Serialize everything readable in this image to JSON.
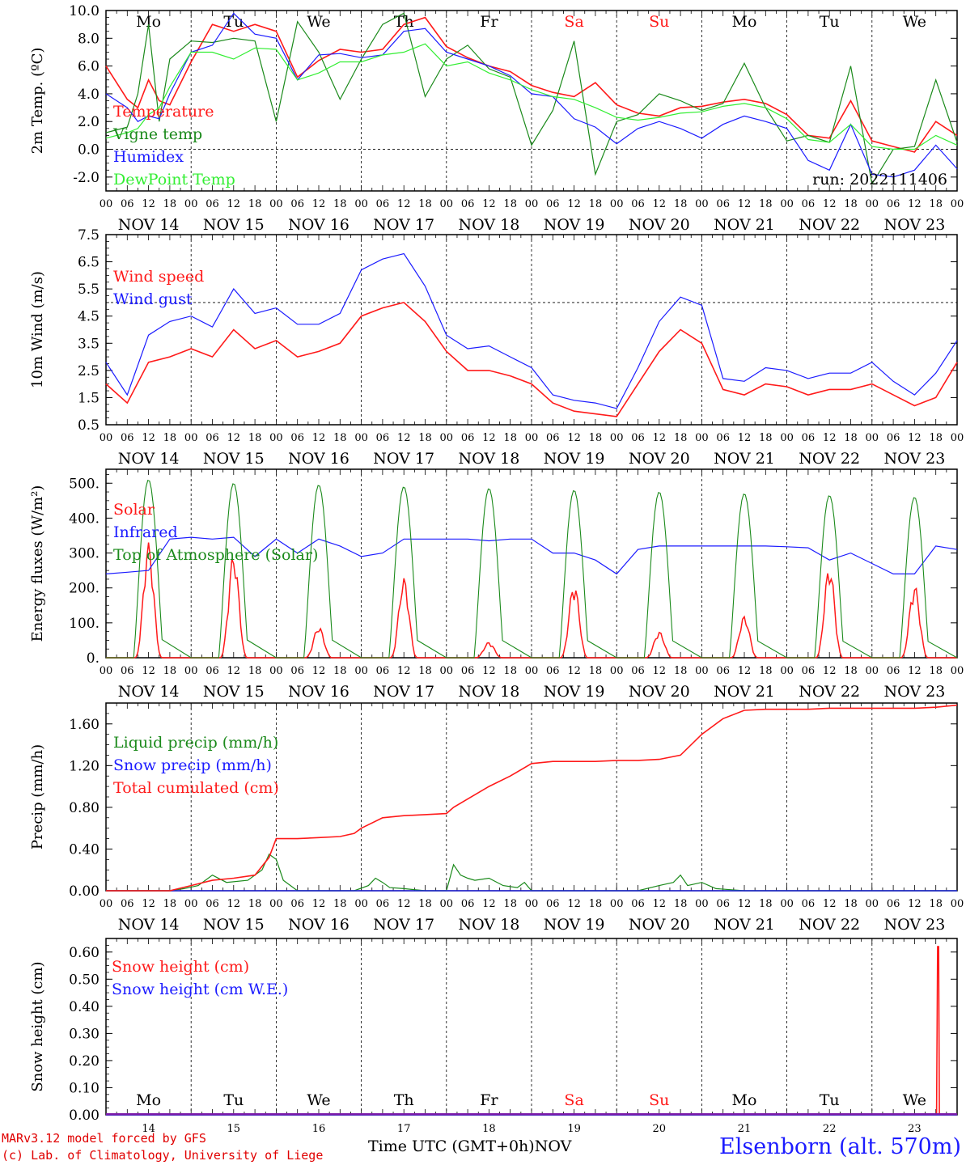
{
  "footer": {
    "model_line": "MARv3.12 model forced by GFS",
    "copyright_line": "(c) Lab. of Climatology, University of Liege",
    "station": "Elsenborn (alt. 570m)",
    "time_axis_label": "Time UTC (GMT+0h)",
    "month_label": "NOV"
  },
  "colors": {
    "red": "#ff1a1a",
    "green": "#1b8a1b",
    "blue": "#1c1cff",
    "lightgreen": "#33ee33",
    "weekend": "#ff1a1a"
  },
  "time_axis": {
    "days": [
      "NOV 14",
      "NOV 15",
      "NOV 16",
      "NOV 17",
      "NOV 18",
      "NOV 19",
      "NOV 20",
      "NOV 21",
      "NOV 22",
      "NOV 23"
    ],
    "day_numbers": [
      "14",
      "15",
      "16",
      "17",
      "18",
      "19",
      "20",
      "21",
      "22",
      "23"
    ],
    "weekdays": [
      "Mo",
      "Tu",
      "We",
      "Th",
      "Fr",
      "Sa",
      "Su",
      "Mo",
      "Tu",
      "We"
    ],
    "weekend_flags": [
      false,
      false,
      false,
      false,
      false,
      true,
      true,
      false,
      false,
      false
    ],
    "hour_ticks": [
      "00",
      "06",
      "12",
      "18"
    ],
    "end_tick": "00"
  },
  "chart_data": [
    {
      "id": "temp",
      "type": "line",
      "ylabel": "2m Temp. (ºC)",
      "ylim": [
        -3,
        10
      ],
      "yticks": [
        "-2.0",
        "0.0",
        "2.0",
        "4.0",
        "6.0",
        "8.0",
        "10.0"
      ],
      "ytick_values": [
        -2,
        0,
        2,
        4,
        6,
        8,
        10
      ],
      "ref_line": 0,
      "annotation": "run: 2022111406",
      "x_hours": [
        0,
        6,
        9,
        12,
        15,
        18,
        24,
        30,
        36,
        42,
        48,
        54,
        60,
        66,
        72,
        78,
        84,
        90,
        96,
        102,
        108,
        114,
        120,
        126,
        132,
        138,
        144,
        150,
        156,
        162,
        168,
        174,
        180,
        186,
        192,
        198,
        204,
        210,
        216,
        222,
        228,
        234,
        240
      ],
      "series": [
        {
          "name": "Temperature",
          "color": "red",
          "values": [
            6.0,
            3.6,
            3.0,
            5.0,
            3.5,
            3.2,
            6.3,
            9.0,
            8.5,
            9.0,
            8.5,
            5.2,
            6.4,
            7.2,
            7.0,
            7.2,
            9.0,
            9.5,
            7.4,
            6.6,
            6.0,
            5.6,
            4.6,
            4.1,
            3.8,
            4.8,
            3.2,
            2.6,
            2.4,
            3.0,
            3.1,
            3.4,
            3.6,
            3.3,
            2.5,
            1.0,
            0.8,
            3.5,
            0.6,
            0.2,
            -0.2,
            2.0,
            1.0
          ]
        },
        {
          "name": "Vigne temp",
          "color": "green",
          "values": [
            1.2,
            1.6,
            4.0,
            9.0,
            2.0,
            6.5,
            7.8,
            7.7,
            8.0,
            7.8,
            2.0,
            9.2,
            7.0,
            3.6,
            6.5,
            9.0,
            9.8,
            3.8,
            6.5,
            7.5,
            5.8,
            5.2,
            0.3,
            2.8,
            7.8,
            -1.8,
            2.0,
            2.5,
            4.0,
            3.5,
            2.8,
            3.3,
            6.2,
            3.0,
            0.6,
            1.0,
            0.5,
            6.0,
            -2.5,
            0.0,
            0.2,
            5.0,
            0.5
          ]
        },
        {
          "name": "Humidex",
          "color": "blue",
          "values": [
            4.0,
            3.0,
            2.0,
            2.4,
            2.2,
            4.0,
            7.0,
            7.5,
            9.8,
            8.3,
            8.0,
            5.0,
            6.8,
            6.9,
            6.6,
            6.8,
            8.5,
            8.7,
            7.0,
            6.5,
            6.0,
            5.3,
            4.0,
            3.8,
            2.2,
            1.6,
            0.4,
            1.5,
            2.0,
            1.5,
            0.8,
            1.8,
            2.4,
            2.0,
            1.5,
            -0.8,
            -1.5,
            1.8,
            -1.8,
            -2.0,
            -1.5,
            0.3,
            -1.4
          ]
        },
        {
          "name": "DewPoint Temp",
          "color": "lightgreen",
          "values": [
            0.8,
            1.2,
            1.5,
            2.5,
            3.0,
            4.5,
            7.0,
            7.0,
            6.5,
            7.3,
            7.2,
            5.0,
            5.5,
            6.3,
            6.3,
            6.8,
            7.0,
            7.6,
            6.0,
            6.3,
            5.5,
            5.0,
            4.3,
            3.8,
            3.6,
            3.0,
            2.3,
            2.1,
            2.3,
            2.6,
            2.7,
            3.1,
            3.3,
            3.0,
            2.2,
            0.7,
            0.5,
            1.8,
            0.2,
            0.0,
            0.0,
            1.0,
            0.3
          ]
        }
      ]
    },
    {
      "id": "wind",
      "type": "line",
      "ylabel": "10m Wind (m/s)",
      "ylim": [
        0.5,
        7.5
      ],
      "yticks": [
        "0.5",
        "1.5",
        "2.5",
        "3.5",
        "4.5",
        "5.5",
        "6.5",
        "7.5"
      ],
      "ytick_values": [
        0.5,
        1.5,
        2.5,
        3.5,
        4.5,
        5.5,
        6.5,
        7.5
      ],
      "ref_line": 5.0,
      "x_hours": [
        0,
        6,
        12,
        18,
        24,
        30,
        36,
        42,
        48,
        54,
        60,
        66,
        72,
        78,
        84,
        90,
        96,
        102,
        108,
        114,
        120,
        126,
        132,
        138,
        144,
        150,
        156,
        162,
        168,
        174,
        180,
        186,
        192,
        198,
        204,
        210,
        216,
        222,
        228,
        234,
        240
      ],
      "series": [
        {
          "name": "Wind speed",
          "color": "red",
          "values": [
            2.0,
            1.3,
            2.8,
            3.0,
            3.3,
            3.0,
            4.0,
            3.3,
            3.6,
            3.0,
            3.2,
            3.5,
            4.5,
            4.8,
            5.0,
            4.3,
            3.2,
            2.5,
            2.5,
            2.3,
            2.0,
            1.3,
            1.0,
            0.9,
            0.8,
            2.0,
            3.2,
            4.0,
            3.5,
            1.8,
            1.6,
            2.0,
            1.9,
            1.6,
            1.8,
            1.8,
            2.0,
            1.6,
            1.2,
            1.5,
            2.8
          ]
        },
        {
          "name": "Wind gust",
          "color": "blue",
          "values": [
            2.8,
            1.6,
            3.8,
            4.3,
            4.5,
            4.1,
            5.5,
            4.6,
            4.8,
            4.2,
            4.2,
            4.6,
            6.2,
            6.6,
            6.8,
            5.6,
            3.8,
            3.3,
            3.4,
            3.0,
            2.6,
            1.6,
            1.4,
            1.3,
            1.1,
            2.6,
            4.3,
            5.2,
            4.9,
            2.2,
            2.1,
            2.6,
            2.5,
            2.2,
            2.4,
            2.4,
            2.8,
            2.1,
            1.6,
            2.4,
            3.6
          ]
        }
      ]
    },
    {
      "id": "energy",
      "type": "line",
      "ylabel": "Energy fluxes (W/m²)",
      "ylim": [
        0,
        540
      ],
      "yticks": [
        "0.",
        "100.",
        "200.",
        "300.",
        "400.",
        "500."
      ],
      "ytick_values": [
        0,
        100,
        200,
        300,
        400,
        500
      ],
      "series": [
        {
          "name": "Solar",
          "color": "red",
          "daily_peaks": [
            330,
            300,
            90,
            230,
            45,
            215,
            75,
            120,
            265,
            210
          ]
        },
        {
          "name": "Infrared",
          "color": "blue",
          "x_hours": [
            0,
            6,
            12,
            18,
            24,
            30,
            36,
            42,
            48,
            54,
            60,
            66,
            72,
            78,
            84,
            90,
            96,
            102,
            108,
            114,
            120,
            126,
            132,
            138,
            144,
            150,
            156,
            162,
            168,
            174,
            180,
            186,
            192,
            198,
            204,
            210,
            216,
            222,
            228,
            234,
            240
          ],
          "values": [
            240,
            245,
            250,
            340,
            345,
            340,
            345,
            290,
            340,
            300,
            340,
            320,
            290,
            300,
            340,
            340,
            340,
            340,
            335,
            340,
            340,
            300,
            300,
            280,
            240,
            310,
            320,
            320,
            320,
            320,
            320,
            320,
            318,
            315,
            280,
            300,
            270,
            240,
            240,
            320,
            310
          ]
        },
        {
          "name": "Top of Atmosphere (Solar)",
          "color": "green",
          "daily_peaks": [
            510,
            500,
            495,
            490,
            485,
            480,
            475,
            470,
            465,
            460
          ]
        }
      ]
    },
    {
      "id": "precip",
      "type": "line",
      "ylabel": "Precip (mm/h)",
      "ylim": [
        0,
        1.8
      ],
      "yticks": [
        "0.00",
        "0.40",
        "0.80",
        "1.20",
        "1.60"
      ],
      "ytick_values": [
        0,
        0.4,
        0.8,
        1.2,
        1.6
      ],
      "series": [
        {
          "name": "Liquid precip (mm/h)",
          "color": "green",
          "x_hours": [
            0,
            18,
            22,
            26,
            30,
            34,
            40,
            44,
            46,
            48,
            50,
            54,
            70,
            74,
            76,
            78,
            80,
            84,
            90,
            96,
            98,
            100,
            102,
            104,
            108,
            112,
            116,
            118,
            120,
            140,
            150,
            156,
            160,
            162,
            164,
            168,
            172,
            180,
            240
          ],
          "values": [
            0,
            0,
            0.02,
            0.05,
            0.15,
            0.08,
            0.1,
            0.2,
            0.35,
            0.3,
            0.1,
            0,
            0,
            0.05,
            0.12,
            0.08,
            0.03,
            0.02,
            0,
            0,
            0.25,
            0.15,
            0.12,
            0.1,
            0.12,
            0.05,
            0.03,
            0.08,
            0,
            0,
            0,
            0.05,
            0.08,
            0.15,
            0.05,
            0.08,
            0.02,
            0,
            0
          ]
        },
        {
          "name": "Snow precip (mm/h)",
          "color": "blue",
          "x_hours": [
            0,
            240
          ],
          "values": [
            0,
            0
          ]
        },
        {
          "name": "Total cumulated (cm)",
          "color": "red",
          "x_hours": [
            0,
            18,
            24,
            30,
            36,
            42,
            46,
            48,
            54,
            60,
            66,
            70,
            72,
            78,
            84,
            90,
            96,
            98,
            102,
            108,
            114,
            120,
            126,
            132,
            138,
            144,
            150,
            156,
            162,
            168,
            174,
            180,
            186,
            192,
            198,
            204,
            210,
            216,
            222,
            228,
            234,
            240
          ],
          "values": [
            0,
            0,
            0.05,
            0.1,
            0.12,
            0.15,
            0.32,
            0.5,
            0.5,
            0.51,
            0.52,
            0.55,
            0.6,
            0.7,
            0.72,
            0.73,
            0.74,
            0.8,
            0.88,
            1.0,
            1.1,
            1.22,
            1.24,
            1.24,
            1.24,
            1.25,
            1.25,
            1.26,
            1.3,
            1.5,
            1.65,
            1.73,
            1.74,
            1.74,
            1.74,
            1.75,
            1.75,
            1.75,
            1.75,
            1.75,
            1.76,
            1.78
          ]
        }
      ]
    },
    {
      "id": "snow",
      "type": "line",
      "ylabel": "Snow height (cm)",
      "ylim": [
        0,
        0.65
      ],
      "yticks": [
        "0.00",
        "0.10",
        "0.20",
        "0.30",
        "0.40",
        "0.50",
        "0.60"
      ],
      "ytick_values": [
        0,
        0.1,
        0.2,
        0.3,
        0.4,
        0.5,
        0.6
      ],
      "series": [
        {
          "name": "Snow height (cm)",
          "color": "red",
          "x_hours": [
            0,
            234.2,
            234.5,
            234.8,
            235.0,
            240
          ],
          "values": [
            0,
            0,
            0.62,
            0.62,
            0,
            0
          ]
        },
        {
          "name": "Snow height (cm W.E.)",
          "color": "blue",
          "x_hours": [
            0,
            240
          ],
          "values": [
            0,
            0
          ]
        }
      ]
    }
  ]
}
